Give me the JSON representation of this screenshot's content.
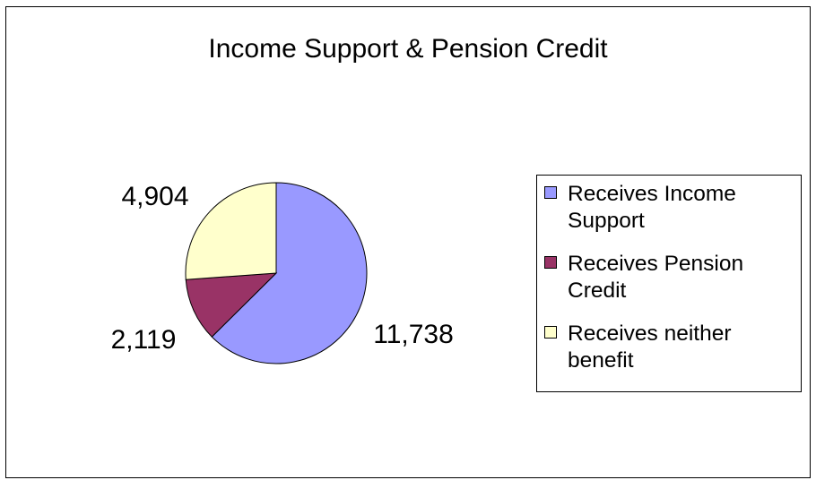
{
  "chart_data": {
    "type": "pie",
    "title": "Income Support & Pension Credit",
    "series": [
      {
        "name": "Receives Income Support",
        "value": 11738,
        "label": "11,738",
        "color": "#9999FF"
      },
      {
        "name": "Receives Pension Credit",
        "value": 2119,
        "label": "2,119",
        "color": "#993366"
      },
      {
        "name": "Receives neither benefit",
        "value": 4904,
        "label": "4,904",
        "color": "#FFFFCC"
      }
    ],
    "legend_position": "right"
  },
  "legend": {
    "items": [
      {
        "label": "Receives Income Support",
        "color": "#9999FF"
      },
      {
        "label": "Receives Pension Credit",
        "color": "#993366"
      },
      {
        "label": "Receives neither benefit",
        "color": "#FFFFCC"
      }
    ]
  }
}
